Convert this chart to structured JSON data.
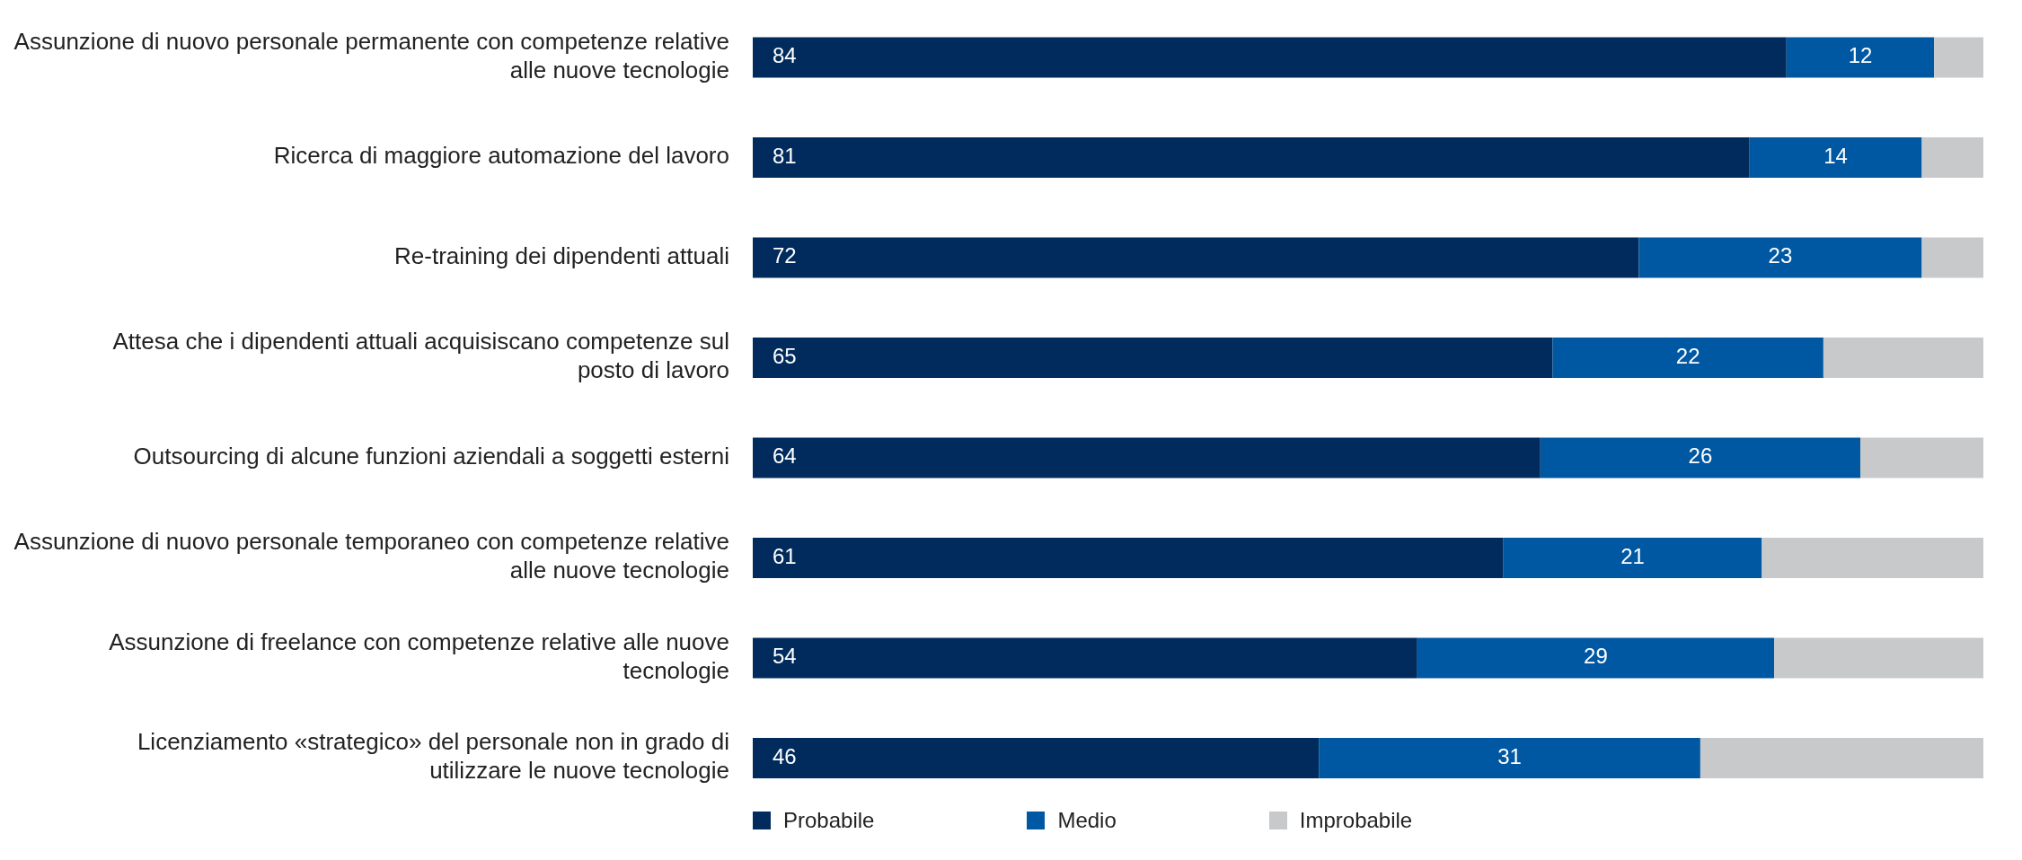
{
  "chart_data": {
    "type": "bar",
    "orientation": "horizontal",
    "stacked": true,
    "categories": [
      "Assunzione di nuovo personale permanente con competenze relative alle nuove tecnologie",
      "Ricerca di maggiore automazione del lavoro",
      "Re-training dei dipendenti attuali",
      "Attesa che i dipendenti attuali acquisiscano competenze sul posto di lavoro",
      "Outsourcing di alcune funzioni aziendali a soggetti esterni",
      "Assunzione di nuovo personale temporaneo con competenze relative alle nuove tecnologie",
      "Assunzione di freelance con competenze relative alle nuove tecnologie",
      "Licenziamento «strategico» del personale non in grado di utilizzare le nuove tecnologie"
    ],
    "series": [
      {
        "name": "Probabile",
        "color": "#002b5c",
        "values": [
          84,
          81,
          72,
          65,
          64,
          61,
          54,
          46
        ],
        "value_labels": [
          "84",
          "81",
          "72",
          "65",
          "64",
          "61",
          "54",
          "46"
        ]
      },
      {
        "name": "Medio",
        "color": "#0058a3",
        "values": [
          12,
          14,
          23,
          22,
          26,
          21,
          29,
          31
        ],
        "value_labels": [
          "12",
          "14",
          "23",
          "22",
          "26",
          "21",
          "29",
          "31"
        ]
      },
      {
        "name": "Improbabile",
        "color": "#c8c9cb",
        "values": [
          4,
          5,
          5,
          13,
          10,
          18,
          17,
          23
        ]
      }
    ],
    "xlim": [
      0,
      100
    ],
    "tick_labels": "y",
    "legend": "bottom"
  }
}
